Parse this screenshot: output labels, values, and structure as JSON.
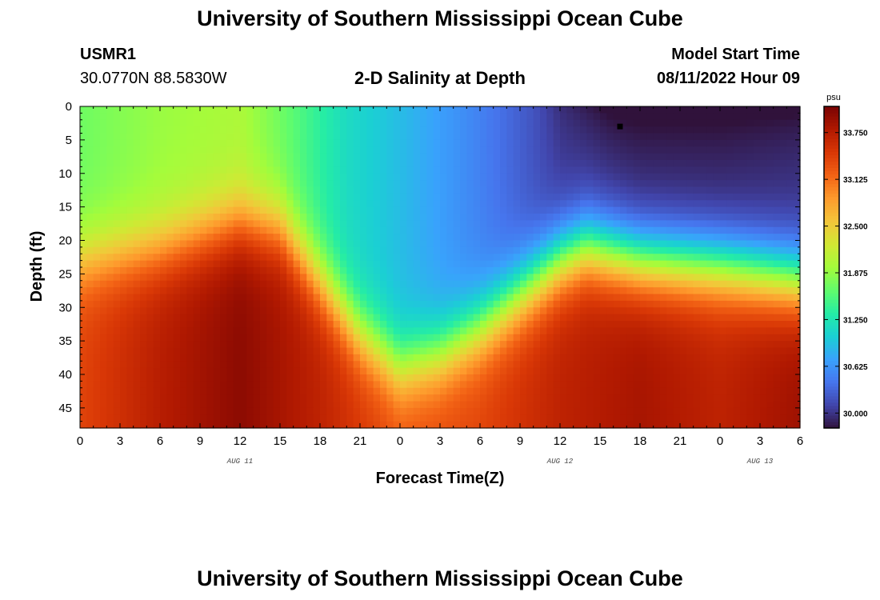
{
  "header": {
    "title": "University of Southern Mississippi Ocean Cube",
    "station_id": "USMR1",
    "coords": "30.0770N  88.5830W",
    "product": "2-D Salinity at Depth",
    "model_start_label": "Model Start Time",
    "model_start_value": "08/11/2022 Hour 09"
  },
  "footer": {
    "title": "University of Southern Mississippi Ocean Cube"
  },
  "colors": {
    "colormap": [
      "#30123b",
      "#4145ab",
      "#4675ed",
      "#39a2fc",
      "#1bcfd4",
      "#24eca6",
      "#61fc6c",
      "#a4fc3b",
      "#d1e834",
      "#f3c63a",
      "#fe9b2d",
      "#f36315",
      "#d93806",
      "#b11901",
      "#7a0403"
    ]
  },
  "chart_data": {
    "type": "heatmap",
    "title": "2-D Salinity at Depth",
    "xlabel": "Forecast Time(Z)",
    "ylabel": "Depth (ft)",
    "units": "psu",
    "x_hours_range": [
      0,
      54
    ],
    "x_tick_hours": [
      0,
      3,
      6,
      9,
      12,
      15,
      18,
      21,
      24,
      27,
      30,
      33,
      36,
      39,
      42,
      45,
      48,
      51,
      54
    ],
    "x_tick_labels": [
      "0",
      "3",
      "6",
      "9",
      "12",
      "15",
      "18",
      "21",
      "0",
      "3",
      "6",
      "9",
      "12",
      "15",
      "18",
      "21",
      "0",
      "3",
      "6"
    ],
    "date_labels": [
      {
        "label": "AUG 11",
        "hour": 12
      },
      {
        "label": "AUG 12",
        "hour": 36
      },
      {
        "label": "AUG 13",
        "hour": 51
      }
    ],
    "ylim": [
      0,
      48
    ],
    "y_ticks": [
      0,
      5,
      10,
      15,
      20,
      25,
      30,
      35,
      40,
      45
    ],
    "y_inverted": true,
    "colorbar": {
      "min": 29.8,
      "max": 34.1,
      "ticks": [
        30.0,
        30.625,
        31.25,
        31.875,
        32.5,
        33.125,
        33.75
      ],
      "tick_labels": [
        "30.000",
        "30.625",
        "31.250",
        "31.875",
        "32.500",
        "33.125",
        "33.750"
      ]
    },
    "halocline_depth_ft_by_hour": [
      [
        0,
        23
      ],
      [
        6,
        21
      ],
      [
        12,
        17
      ],
      [
        15,
        18
      ],
      [
        18,
        26
      ],
      [
        21,
        34
      ],
      [
        24,
        39
      ],
      [
        27,
        37
      ],
      [
        30,
        33
      ],
      [
        33,
        28
      ],
      [
        36,
        23
      ],
      [
        38,
        21
      ],
      [
        42,
        23
      ],
      [
        48,
        24
      ],
      [
        54,
        26
      ]
    ],
    "upper_layer_salinity_by_hour": [
      [
        0,
        31.7
      ],
      [
        6,
        31.9
      ],
      [
        12,
        32.0
      ],
      [
        16,
        31.6
      ],
      [
        20,
        31.15
      ],
      [
        24,
        30.9
      ],
      [
        30,
        30.5
      ],
      [
        36,
        30.05
      ],
      [
        42,
        29.95
      ],
      [
        48,
        29.95
      ],
      [
        54,
        30.0
      ]
    ],
    "deep_salinity_by_hour": [
      [
        0,
        33.4
      ],
      [
        6,
        33.75
      ],
      [
        12,
        34.0
      ],
      [
        18,
        33.7
      ],
      [
        24,
        33.3
      ],
      [
        30,
        33.4
      ],
      [
        36,
        33.7
      ],
      [
        42,
        33.85
      ],
      [
        48,
        33.7
      ],
      [
        54,
        33.9
      ]
    ],
    "marker": {
      "hour": 40.5,
      "depth": 3
    }
  }
}
